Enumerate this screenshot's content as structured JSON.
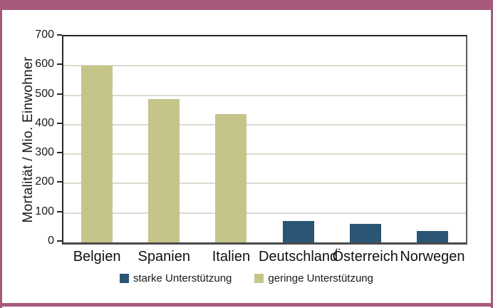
{
  "frame": {
    "accent_color": "#a85a7c"
  },
  "chart_data": {
    "type": "bar",
    "categories": [
      "Belgien",
      "Spanien",
      "Italien",
      "Deutschland",
      "Österreich",
      "Norwegen"
    ],
    "values": [
      600,
      487,
      436,
      72,
      62,
      38
    ],
    "bar_series": [
      "geringe Unterstützung",
      "geringe Unterstützung",
      "geringe Unterstützung",
      "starke Unterstützung",
      "starke Unterstützung",
      "starke Unterstützung"
    ],
    "ylabel": "Mortalität / Mio. Einwohner",
    "xlabel": "",
    "ylim": [
      0,
      700
    ],
    "yticks": [
      0,
      100,
      200,
      300,
      400,
      500,
      600,
      700
    ],
    "grid": true,
    "gridline_color": "#dbdbd0",
    "legend_position": "bottom",
    "legend": [
      {
        "label": "starke Unterstützung",
        "color": "#2a5574"
      },
      {
        "label": "geringe Unterstützung",
        "color": "#c5c58a"
      }
    ]
  }
}
